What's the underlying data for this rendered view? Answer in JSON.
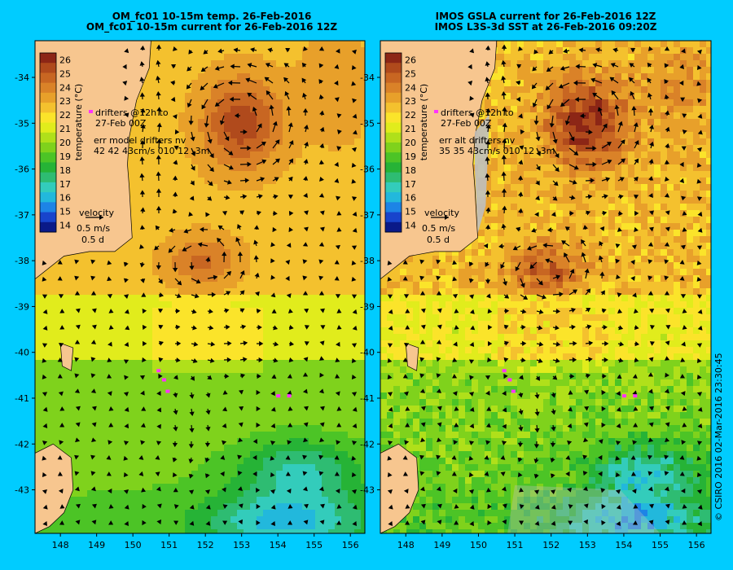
{
  "colors": {
    "background": "#00ccff",
    "land": "#f7c68f",
    "colorbar": [
      "#0a1a88",
      "#1844cc",
      "#1d84e6",
      "#22b8dc",
      "#33ccbb",
      "#2ebc72",
      "#26b336",
      "#4cc426",
      "#7fd21c",
      "#b0e01a",
      "#e1ec1c",
      "#fbe42a",
      "#f4c12e",
      "#e8a02a",
      "#da8228",
      "#c86622",
      "#b04a1c",
      "#8c2616"
    ]
  },
  "panels": [
    {
      "title_line1": "OM_fc01 10-15m temp. 26-Feb-2016",
      "title_line2": "OM_fc01 10-15m current for 26-Feb-2016 12Z",
      "drifter_text_1": "drifters @12h to",
      "drifter_text_2": "27-Feb 00Z",
      "err_text_1": "err model drifters nv",
      "err_text_2": "42 42 43cm/s 010 12 -3m",
      "velocity_label": "velocity",
      "velocity_speed": "0.5 m/s",
      "velocity_time": "0.5 d",
      "colorbar_label": "temperature (°C)",
      "colorbar_ticks": [
        "26",
        "25",
        "24",
        "23",
        "22",
        "21",
        "20",
        "19",
        "18",
        "17",
        "16",
        "15",
        "14"
      ],
      "lat_ticks": [
        "-34",
        "-35",
        "-36",
        "-37",
        "-38",
        "-39",
        "-40",
        "-41",
        "-42",
        "-43"
      ],
      "lon_ticks": [
        "148",
        "149",
        "150",
        "151",
        "152",
        "153",
        "154",
        "155",
        "156"
      ],
      "map_variant": "model"
    },
    {
      "title_line1": "IMOS GSLA current for 26-Feb-2016 12Z",
      "title_line2": "IMOS L3S-3d SST at 26-Feb-2016 09:20Z",
      "drifter_text_1": "drifters @12h to",
      "drifter_text_2": "27-Feb 00Z",
      "err_text_1": "err alt drifters nv",
      "err_text_2": "35 35 43cm/s 010 12 -3m",
      "velocity_label": "velocity",
      "velocity_speed": "0.5 m/s",
      "velocity_time": "0.5 d",
      "colorbar_label": "temperature (°C)",
      "colorbar_ticks": [
        "26",
        "25",
        "24",
        "23",
        "22",
        "21",
        "20",
        "19",
        "18",
        "17",
        "16",
        "15",
        "14"
      ],
      "lat_ticks": [
        "-34",
        "-35",
        "-36",
        "-37",
        "-38",
        "-39",
        "-40",
        "-41",
        "-42",
        "-43"
      ],
      "lon_ticks": [
        "148",
        "149",
        "150",
        "151",
        "152",
        "153",
        "154",
        "155",
        "156"
      ],
      "map_variant": "satellite"
    }
  ],
  "copyright": "© CSIRO 2016   02-Mar-2016 23:30:45",
  "chart_data": [
    {
      "type": "heatmap",
      "title": "OM_fc01 10-15m temp. 26-Feb-2016",
      "subtitle": "OM_fc01 10-15m current for 26-Feb-2016 12Z",
      "xlim": [
        147.3,
        156.4
      ],
      "ylim": [
        -43.95,
        -33.2
      ],
      "colorbar_range": [
        13.5,
        26.5
      ],
      "colorbar_label": "temperature (°C)",
      "eddies": [
        {
          "lon": 153.0,
          "lat": -35.0,
          "temp": 25.5,
          "rotation": "anticlockwise"
        },
        {
          "lon": 151.9,
          "lat": -38.0,
          "temp": 24.5,
          "rotation": "anticlockwise"
        }
      ]
    },
    {
      "type": "heatmap",
      "title": "IMOS GSLA current for 26-Feb-2016 12Z",
      "subtitle": "IMOS L3S-3d SST at 26-Feb-2016 09:20Z",
      "xlim": [
        147.3,
        156.4
      ],
      "ylim": [
        -43.95,
        -33.2
      ],
      "colorbar_range": [
        13.5,
        26.5
      ],
      "colorbar_label": "temperature (°C)",
      "eddies": [
        {
          "lon": 153.0,
          "lat": -35.0,
          "temp": 26.0,
          "rotation": "anticlockwise"
        },
        {
          "lon": 151.9,
          "lat": -38.2,
          "temp": 25.0,
          "rotation": "anticlockwise"
        }
      ]
    }
  ]
}
